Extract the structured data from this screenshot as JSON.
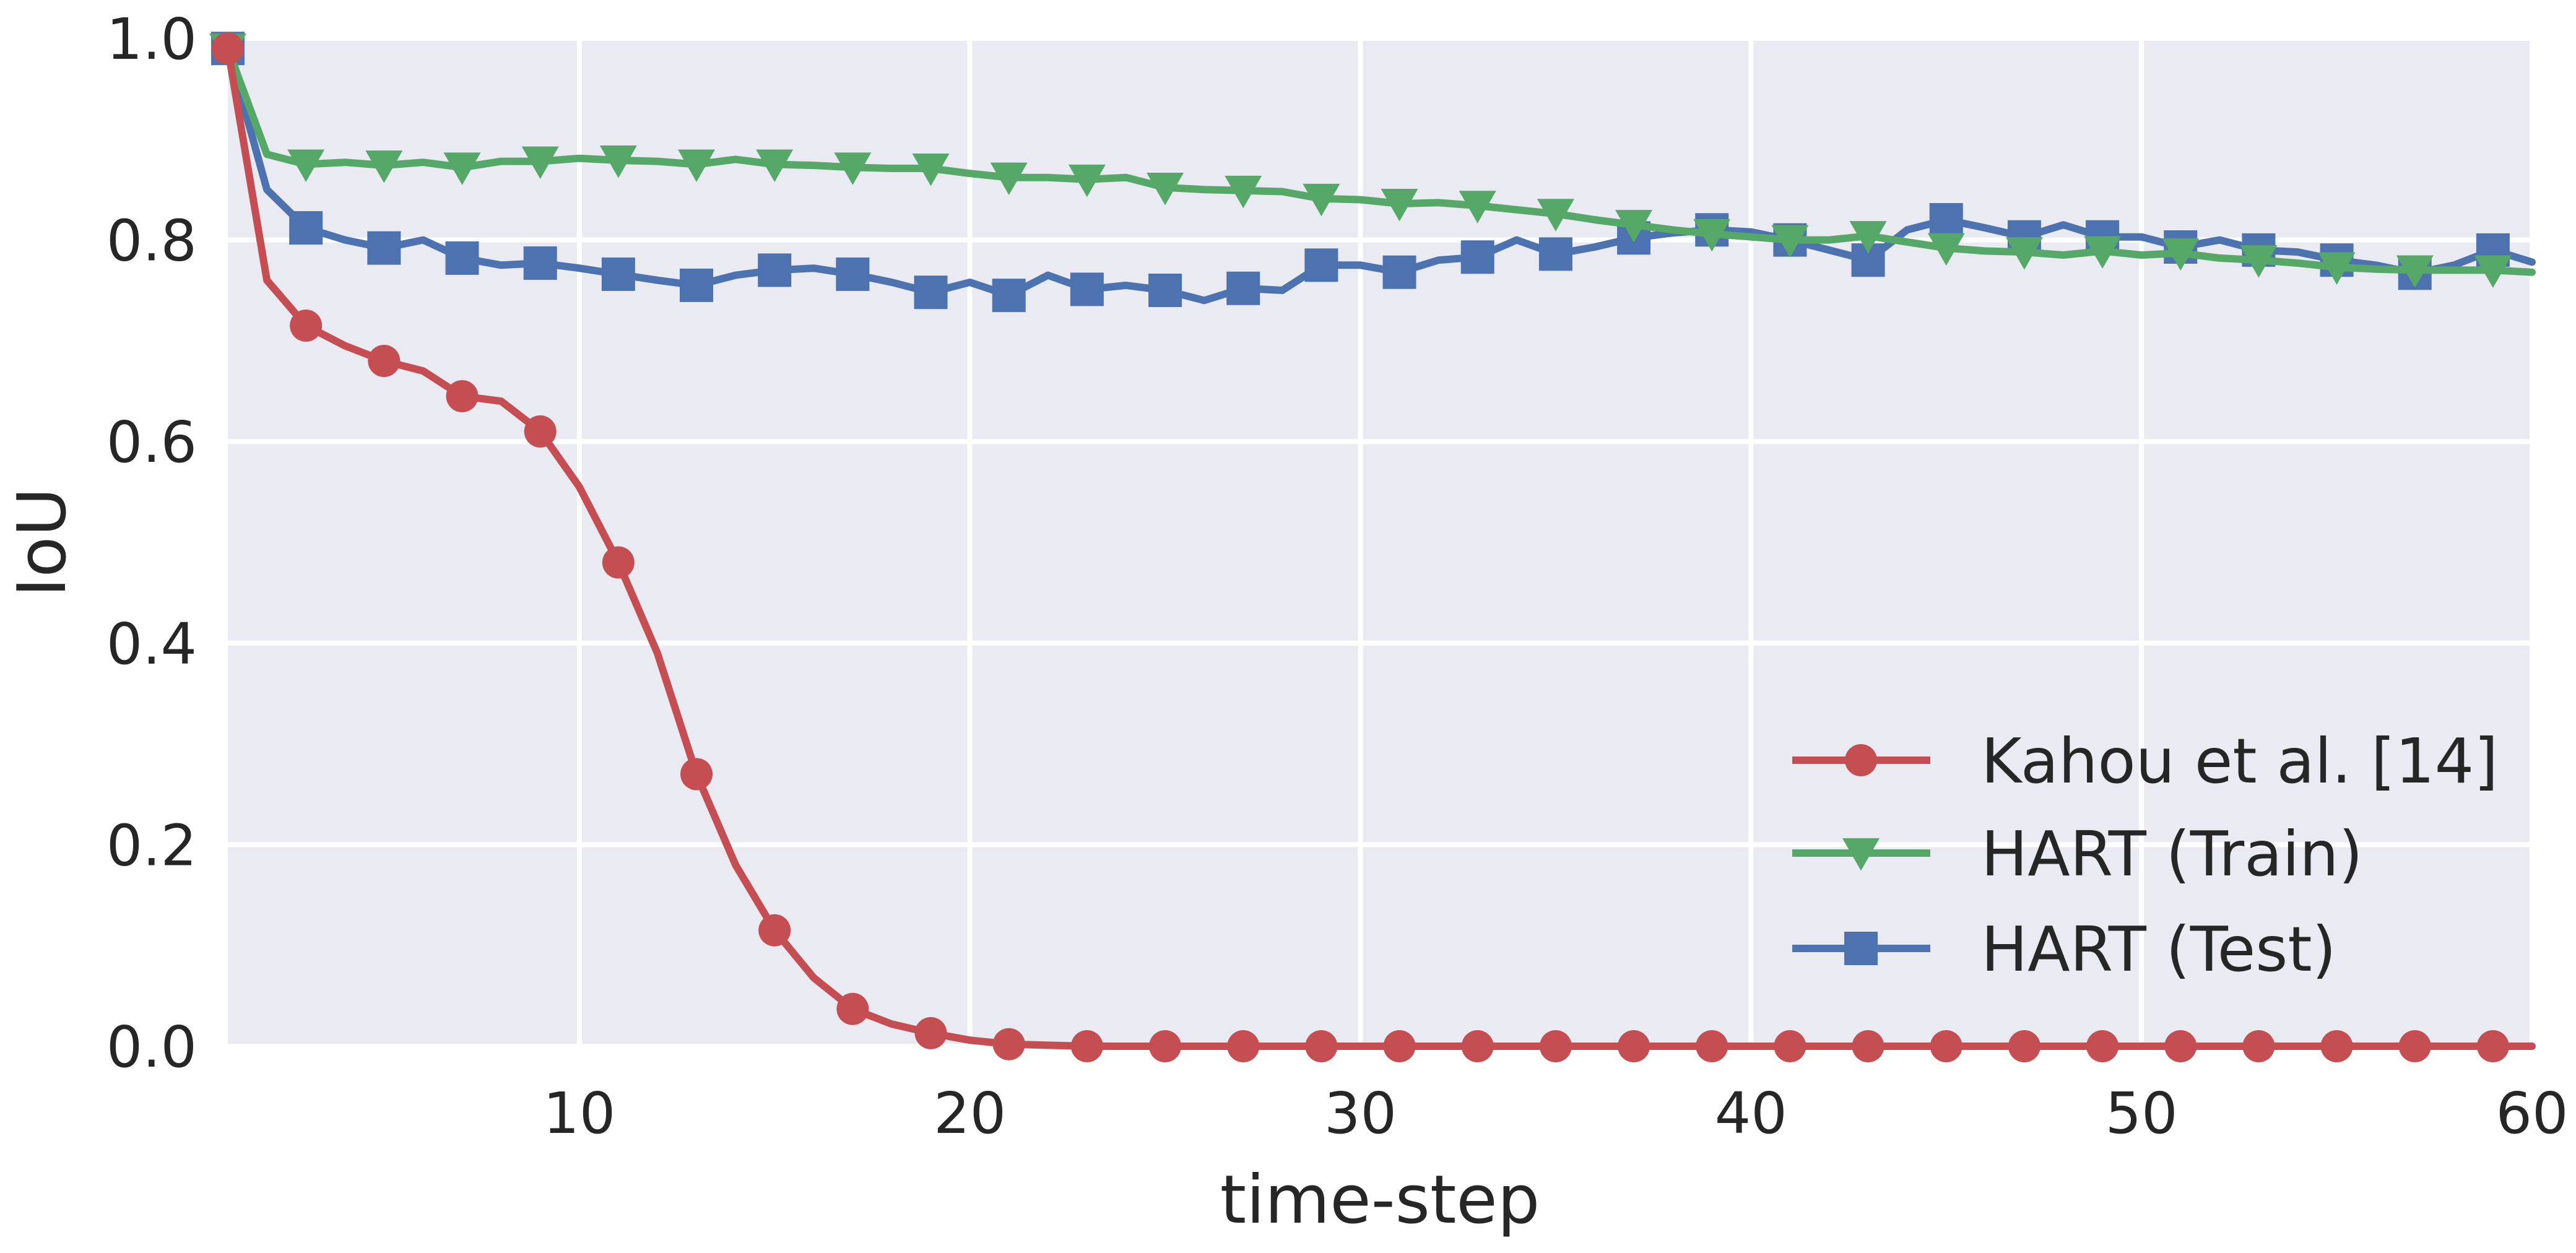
{
  "chart_data": {
    "type": "line",
    "xlabel": "time-step",
    "ylabel": "IoU",
    "xlim": [
      1,
      60
    ],
    "ylim": [
      0.0,
      1.0
    ],
    "x_ticks": [
      "10",
      "20",
      "30",
      "40",
      "50",
      "60"
    ],
    "y_ticks": [
      "0.0",
      "0.2",
      "0.4",
      "0.6",
      "0.8",
      "1.0"
    ],
    "grid": true,
    "legend_position": "lower-right",
    "background": "#EAEAF2",
    "series": [
      {
        "name": "Kahou et al. [14]",
        "color": "#C44E52",
        "marker": "circle",
        "x": [
          1,
          2,
          3,
          4,
          5,
          6,
          7,
          8,
          9,
          10,
          11,
          12,
          13,
          14,
          15,
          16,
          17,
          18,
          19,
          20,
          21,
          22,
          23,
          24,
          25,
          26,
          27,
          28,
          29,
          30,
          31,
          32,
          33,
          34,
          35,
          36,
          37,
          38,
          39,
          40,
          41,
          42,
          43,
          44,
          45,
          46,
          47,
          48,
          49,
          50,
          51,
          52,
          53,
          54,
          55,
          56,
          57,
          58,
          59,
          60
        ],
        "y": [
          0.99,
          0.76,
          0.715,
          0.695,
          0.68,
          0.67,
          0.645,
          0.64,
          0.61,
          0.555,
          0.48,
          0.39,
          0.27,
          0.18,
          0.115,
          0.068,
          0.037,
          0.022,
          0.013,
          0.006,
          0.002,
          0.001,
          0,
          0,
          0,
          0,
          0,
          0,
          0,
          0,
          0,
          0,
          0,
          0,
          0,
          0,
          0,
          0,
          0,
          0,
          0,
          0,
          0,
          0,
          0,
          0,
          0,
          0,
          0,
          0,
          0,
          0,
          0,
          0,
          0,
          0,
          0,
          0,
          0,
          0
        ]
      },
      {
        "name": "HART (Train)",
        "color": "#55A868",
        "marker": "triangle-down",
        "x": [
          1,
          2,
          3,
          4,
          5,
          6,
          7,
          8,
          9,
          10,
          11,
          12,
          13,
          14,
          15,
          16,
          17,
          18,
          19,
          20,
          21,
          22,
          23,
          24,
          25,
          26,
          27,
          28,
          29,
          30,
          31,
          32,
          33,
          34,
          35,
          36,
          37,
          38,
          39,
          40,
          41,
          42,
          43,
          44,
          45,
          46,
          47,
          48,
          49,
          50,
          51,
          52,
          53,
          54,
          55,
          56,
          57,
          58,
          59,
          60
        ],
        "y": [
          0.99,
          0.885,
          0.875,
          0.877,
          0.874,
          0.877,
          0.872,
          0.878,
          0.878,
          0.881,
          0.879,
          0.878,
          0.875,
          0.88,
          0.875,
          0.874,
          0.872,
          0.871,
          0.871,
          0.866,
          0.862,
          0.862,
          0.86,
          0.862,
          0.852,
          0.85,
          0.849,
          0.848,
          0.841,
          0.84,
          0.836,
          0.837,
          0.834,
          0.83,
          0.826,
          0.82,
          0.815,
          0.81,
          0.806,
          0.803,
          0.8,
          0.8,
          0.804,
          0.798,
          0.792,
          0.789,
          0.788,
          0.785,
          0.789,
          0.785,
          0.787,
          0.782,
          0.78,
          0.777,
          0.773,
          0.771,
          0.77,
          0.77,
          0.77,
          0.768
        ]
      },
      {
        "name": "HART (Test)",
        "color": "#4C72B0",
        "marker": "square",
        "x": [
          1,
          2,
          3,
          4,
          5,
          6,
          7,
          8,
          9,
          10,
          11,
          12,
          13,
          14,
          15,
          16,
          17,
          18,
          19,
          20,
          21,
          22,
          23,
          24,
          25,
          26,
          27,
          28,
          29,
          30,
          31,
          32,
          33,
          34,
          35,
          36,
          37,
          38,
          39,
          40,
          41,
          42,
          43,
          44,
          45,
          46,
          47,
          48,
          49,
          50,
          51,
          52,
          53,
          54,
          55,
          56,
          57,
          58,
          59,
          60
        ],
        "y": [
          0.99,
          0.85,
          0.812,
          0.8,
          0.792,
          0.8,
          0.782,
          0.775,
          0.777,
          0.772,
          0.766,
          0.76,
          0.755,
          0.765,
          0.77,
          0.772,
          0.766,
          0.758,
          0.748,
          0.758,
          0.745,
          0.765,
          0.751,
          0.755,
          0.75,
          0.74,
          0.752,
          0.75,
          0.775,
          0.775,
          0.768,
          0.78,
          0.783,
          0.8,
          0.786,
          0.793,
          0.802,
          0.807,
          0.81,
          0.808,
          0.8,
          0.79,
          0.78,
          0.81,
          0.82,
          0.812,
          0.803,
          0.815,
          0.803,
          0.803,
          0.793,
          0.8,
          0.79,
          0.788,
          0.78,
          0.775,
          0.767,
          0.775,
          0.79,
          0.778
        ]
      }
    ]
  }
}
